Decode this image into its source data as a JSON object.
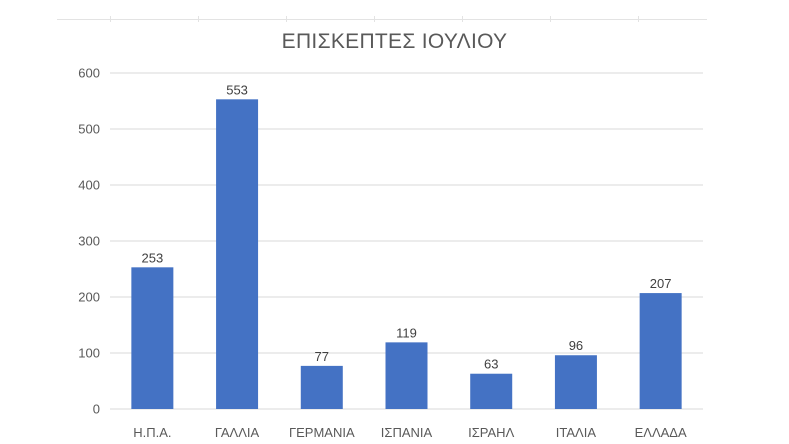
{
  "chart_data": {
    "type": "bar",
    "title": "ΕΠΙΣΚΕΠΤΕΣ ΙΟΥΛΙΟΥ",
    "categories": [
      "Η.Π.Α.",
      "ΓΑΛΛΙΑ",
      "ΓΕΡΜΑΝΙΑ",
      "ΙΣΠΑΝΙΑ",
      "ΙΣΡΑΗΛ",
      "ΙΤΑΛΙΑ",
      "ΕΛΛΑΔΑ"
    ],
    "values": [
      253,
      553,
      77,
      119,
      63,
      96,
      207
    ],
    "data_labels": [
      "253",
      "553",
      "77",
      "119",
      "63",
      "96",
      "207"
    ],
    "xlabel": "",
    "ylabel": "",
    "ylim": [
      0,
      600
    ],
    "yticks": [
      0,
      100,
      200,
      300,
      400,
      500,
      600
    ],
    "ytick_labels": [
      "0",
      "100",
      "200",
      "300",
      "400",
      "500",
      "600"
    ],
    "grid": true,
    "legend": "none",
    "bar_color": "#4472c4",
    "grid_color": "#d9d9d9"
  }
}
